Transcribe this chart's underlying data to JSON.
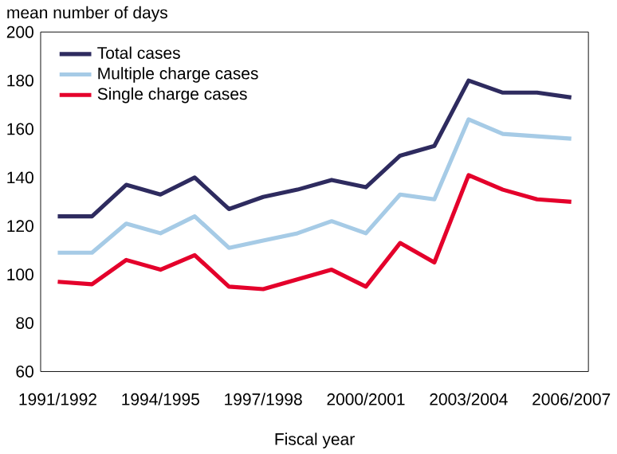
{
  "chart_data": {
    "type": "line",
    "ylabel": "mean number of days",
    "xlabel": "Fiscal year",
    "categories": [
      "1991/1992",
      null,
      null,
      "1994/1995",
      null,
      null,
      "1997/1998",
      null,
      null,
      "2000/2001",
      null,
      null,
      "2003/2004",
      null,
      null,
      "2006/2007"
    ],
    "series": [
      {
        "name": "Total cases",
        "color": "#2e2b5f",
        "values": [
          124,
          124,
          137,
          133,
          140,
          127,
          132,
          135,
          139,
          136,
          149,
          153,
          180,
          175,
          175,
          173
        ]
      },
      {
        "name": "Multiple charge cases",
        "color": "#a6cbe6",
        "values": [
          109,
          109,
          121,
          117,
          124,
          111,
          114,
          117,
          122,
          117,
          133,
          131,
          164,
          158,
          157,
          156
        ]
      },
      {
        "name": "Single charge cases",
        "color": "#e4002b",
        "values": [
          97,
          96,
          106,
          102,
          108,
          95,
          94,
          98,
          102,
          95,
          113,
          105,
          141,
          135,
          131,
          130
        ]
      }
    ],
    "ylim": [
      60,
      200
    ],
    "yticks": [
      60,
      80,
      100,
      120,
      140,
      160,
      180,
      200
    ],
    "grid": false,
    "legend": "top left",
    "marker": "none",
    "line_style": "solid"
  }
}
